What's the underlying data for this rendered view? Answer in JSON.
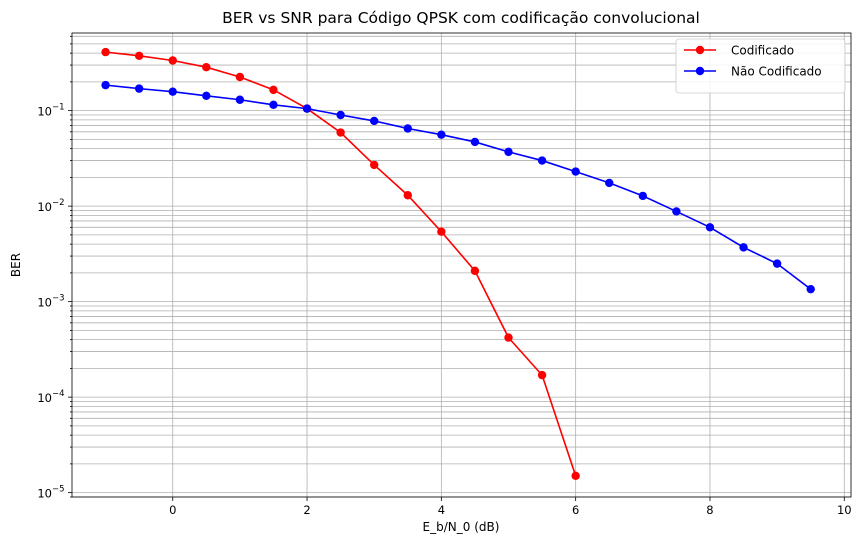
{
  "chart_data": {
    "type": "line",
    "title": "BER vs SNR para Código QPSK com codificação convolucional",
    "xlabel": "E_b/N_0 (dB)",
    "ylabel": "BER",
    "xlim": [
      -1.5,
      10.1
    ],
    "ylim": [
      9e-06,
      0.65
    ],
    "yscale": "log",
    "grid": true,
    "legend_position": "top-right",
    "x_ticks": [
      0,
      2,
      4,
      6,
      8,
      10
    ],
    "x_tick_labels": [
      "0",
      "2",
      "4",
      "6",
      "8",
      "10"
    ],
    "y_ticks": [
      {
        "value": 1e-05,
        "base": "10",
        "exp": "−5"
      },
      {
        "value": 0.0001,
        "base": "10",
        "exp": "−4"
      },
      {
        "value": 0.001,
        "base": "10",
        "exp": "−3"
      },
      {
        "value": 0.01,
        "base": "10",
        "exp": "−2"
      },
      {
        "value": 0.1,
        "base": "10",
        "exp": "−1"
      }
    ],
    "series": [
      {
        "name": "Codificado",
        "color": "#ff0000",
        "x": [
          -1,
          -0.5,
          0,
          0.5,
          1,
          1.5,
          2,
          2.5,
          3,
          3.5,
          4,
          4.5,
          5,
          5.5,
          6
        ],
        "values": [
          0.41,
          0.375,
          0.335,
          0.285,
          0.225,
          0.165,
          0.105,
          0.059,
          0.027,
          0.013,
          0.0054,
          0.0021,
          0.00042,
          0.00017,
          1.5e-05
        ]
      },
      {
        "name": "Não Codificado",
        "color": "#0000ff",
        "x": [
          -1,
          -0.5,
          0,
          0.5,
          1,
          1.5,
          2,
          2.5,
          3,
          3.5,
          4,
          4.5,
          5,
          5.5,
          6,
          6.5,
          7,
          7.5,
          8,
          8.5,
          9,
          9.5
        ],
        "values": [
          0.185,
          0.17,
          0.158,
          0.143,
          0.13,
          0.115,
          0.105,
          0.09,
          0.078,
          0.065,
          0.056,
          0.047,
          0.037,
          0.03,
          0.023,
          0.0175,
          0.0128,
          0.0088,
          0.006,
          0.0037,
          0.0025,
          0.00135
        ]
      }
    ]
  }
}
